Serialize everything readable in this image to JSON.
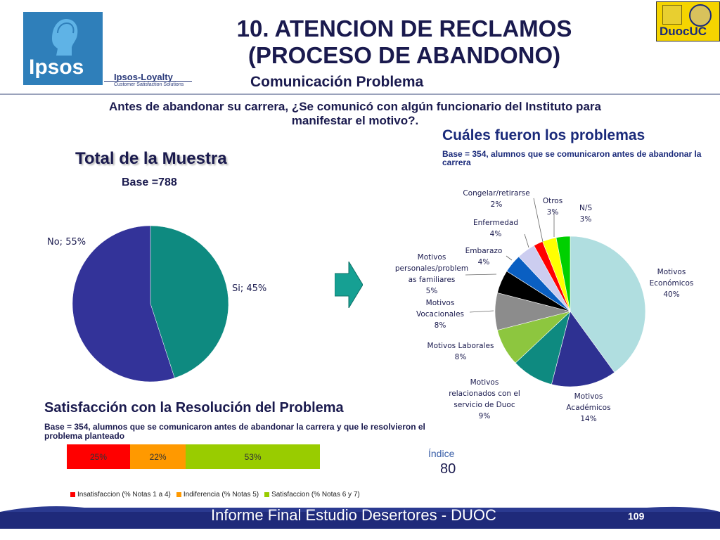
{
  "header": {
    "logo_text": "Ipsos",
    "loyalty_title": "Ipsos-Loyalty",
    "loyalty_subtitle": "Customer Satisfaction Solutions",
    "title_line1": "10. ATENCION DE RECLAMOS",
    "title_line2": "(PROCESO DE ABANDONO)",
    "subtitle": "Comunicación Problema",
    "duoc_logo_text": "DuocUC"
  },
  "question": "Antes de abandonar su carrera, ¿Se comunicó con algún funcionario del Instituto para manifestar el motivo?.",
  "left": {
    "title": "Total de la Muestra",
    "base": "Base =788"
  },
  "right": {
    "title": "Cuáles fueron los problemas",
    "base": "Base = 354, alumnos que se comunicaron antes de abandonar la carrera"
  },
  "satisfaction": {
    "title": "Satisfacción con la Resolución del Problema",
    "base": "Base = 354, alumnos que se comunicaron antes de abandonar la carrera y que le resolvieron el problema planteado",
    "indice_label": "Índice",
    "indice_value": "80"
  },
  "footer": {
    "text": "Informe Final Estudio Desertores - DUOC",
    "page": "109"
  },
  "chart_data": [
    {
      "type": "pie",
      "title": "Total de la Muestra",
      "slices": [
        {
          "label": "Si",
          "value": 45,
          "text": "Si; 45%",
          "color": "#0e8a80"
        },
        {
          "label": "No",
          "value": 55,
          "text": "No; 55%",
          "color": "#333399"
        }
      ]
    },
    {
      "type": "pie",
      "title": "Cuáles fueron los problemas",
      "slices": [
        {
          "label": "Motivos Económicos",
          "lines": [
            "Motivos",
            "Económicos",
            "40%"
          ],
          "value": 40,
          "color": "#b0dee0"
        },
        {
          "label": "Motivos Académicos",
          "lines": [
            "Motivos",
            "Académicos",
            "14%"
          ],
          "value": 14,
          "color": "#2e3192"
        },
        {
          "label": "Motivos relacionados con el servicio de Duoc",
          "lines": [
            "Motivos",
            "relacionados con el",
            "servicio de Duoc",
            "9%"
          ],
          "value": 9,
          "color": "#0e8a80"
        },
        {
          "label": "Motivos Laborales",
          "lines": [
            "Motivos Laborales",
            "8%"
          ],
          "value": 8,
          "color": "#8dc63f"
        },
        {
          "label": "Motivos Vocacionales",
          "lines": [
            "Motivos",
            "Vocacionales",
            "8%"
          ],
          "value": 8,
          "color": "#8c8c8c"
        },
        {
          "label": "Motivos personales/problemas familiares",
          "lines": [
            "Motivos",
            "personales/problem",
            "as familiares",
            "5%"
          ],
          "value": 5,
          "color": "#000000"
        },
        {
          "label": "Embarazo",
          "lines": [
            "Embarazo",
            "4%"
          ],
          "value": 4,
          "color": "#0a5fc2"
        },
        {
          "label": "Enfermedad",
          "lines": [
            "Enfermedad",
            "4%"
          ],
          "value": 4,
          "color": "#cccdf0"
        },
        {
          "label": "Congelar/retirarse",
          "lines": [
            "Congelar/retirarse",
            "2%"
          ],
          "value": 2,
          "color": "#ff0000"
        },
        {
          "label": "Otros",
          "lines": [
            "Otros",
            "3%"
          ],
          "value": 3,
          "color": "#ffff00"
        },
        {
          "label": "N/S",
          "lines": [
            "N/S",
            "3%"
          ],
          "value": 3,
          "color": "#00d000"
        }
      ]
    },
    {
      "type": "bar",
      "orientation": "horizontal-stacked",
      "series": [
        {
          "name": "Insatisfaccion (% Notas 1 a 4)",
          "value": 25,
          "text": "25%",
          "color": "#ff0000"
        },
        {
          "name": "Indiferencia (% Notas 5)",
          "value": 22,
          "text": "22%",
          "color": "#ff9900"
        },
        {
          "name": "Satisfaccion (% Notas 6 y 7)",
          "value": 53,
          "text": "53%",
          "color": "#99cc00"
        }
      ]
    }
  ]
}
